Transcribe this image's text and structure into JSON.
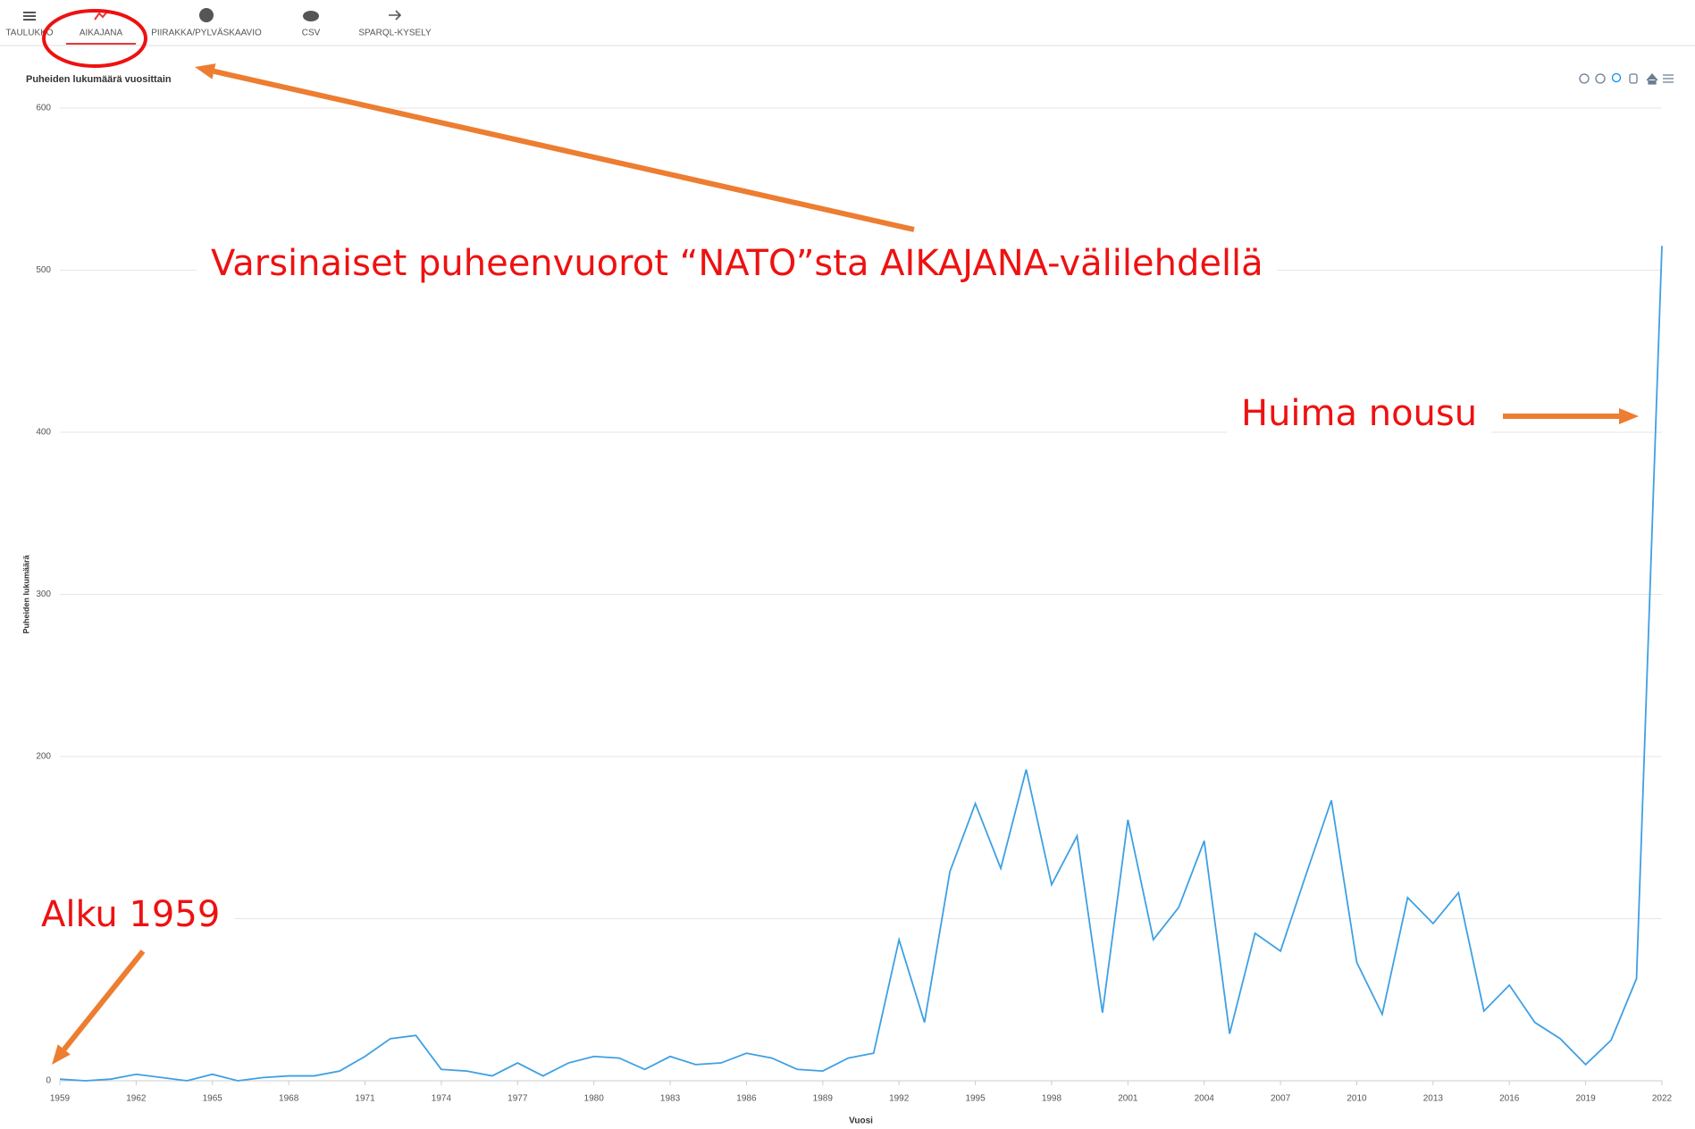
{
  "tabs": [
    "TAULUKKO",
    "AIKAJANA",
    "PIIRAKKA/PYLVÄSKAAVIO",
    "CSV",
    "SPARQL-KYSELY"
  ],
  "chart_data": {
    "type": "line",
    "title": "Puheiden lukumäärä vuosittain",
    "x_label": "Vuosi",
    "y_label": "Puheiden lukumäärä",
    "annotations": [
      "Varsinaiset puheenvuorot “NATO”sta AIKAJANA-välilehdellä",
      "Huima nousu",
      "Alku 1959"
    ],
    "x": [
      1959,
      1960,
      1961,
      1962,
      1963,
      1964,
      1965,
      1966,
      1967,
      1968,
      1969,
      1970,
      1971,
      1972,
      1973,
      1974,
      1975,
      1976,
      1977,
      1978,
      1979,
      1980,
      1981,
      1982,
      1983,
      1984,
      1985,
      1986,
      1987,
      1988,
      1989,
      1990,
      1991,
      1992,
      1993,
      1994,
      1995,
      1996,
      1997,
      1998,
      1999,
      2000,
      2001,
      2002,
      2003,
      2004,
      2005,
      2006,
      2007,
      2008,
      2009,
      2010,
      2011,
      2012,
      2013,
      2014,
      2015,
      2016,
      2017,
      2018,
      2019,
      2020,
      2021,
      2022
    ],
    "series": [
      {
        "name": "Puheiden lukumäärä",
        "color": "#3ea0e4",
        "values": [
          1,
          0,
          1,
          4,
          2,
          0,
          4,
          0,
          2,
          3,
          3,
          6,
          15,
          26,
          28,
          7,
          6,
          3,
          11,
          3,
          11,
          15,
          14,
          7,
          15,
          10,
          11,
          17,
          14,
          7,
          6,
          14,
          17,
          87,
          36,
          129,
          171,
          131,
          192,
          121,
          151,
          42,
          161,
          87,
          107,
          148,
          29,
          91,
          80,
          127,
          173,
          73,
          41,
          113,
          97,
          116,
          43,
          59,
          36,
          26,
          10,
          25,
          63,
          515
        ]
      }
    ],
    "xlim": [
      1959,
      2022
    ],
    "xticks": [
      1959,
      1962,
      1965,
      1968,
      1971,
      1974,
      1977,
      1980,
      1983,
      1986,
      1989,
      1992,
      1995,
      1998,
      2001,
      2004,
      2007,
      2010,
      2013,
      2016,
      2019,
      2022
    ],
    "ylim": [
      0,
      600
    ],
    "yticks": [
      0,
      100,
      200,
      300,
      400,
      500,
      600
    ],
    "grid": true
  }
}
